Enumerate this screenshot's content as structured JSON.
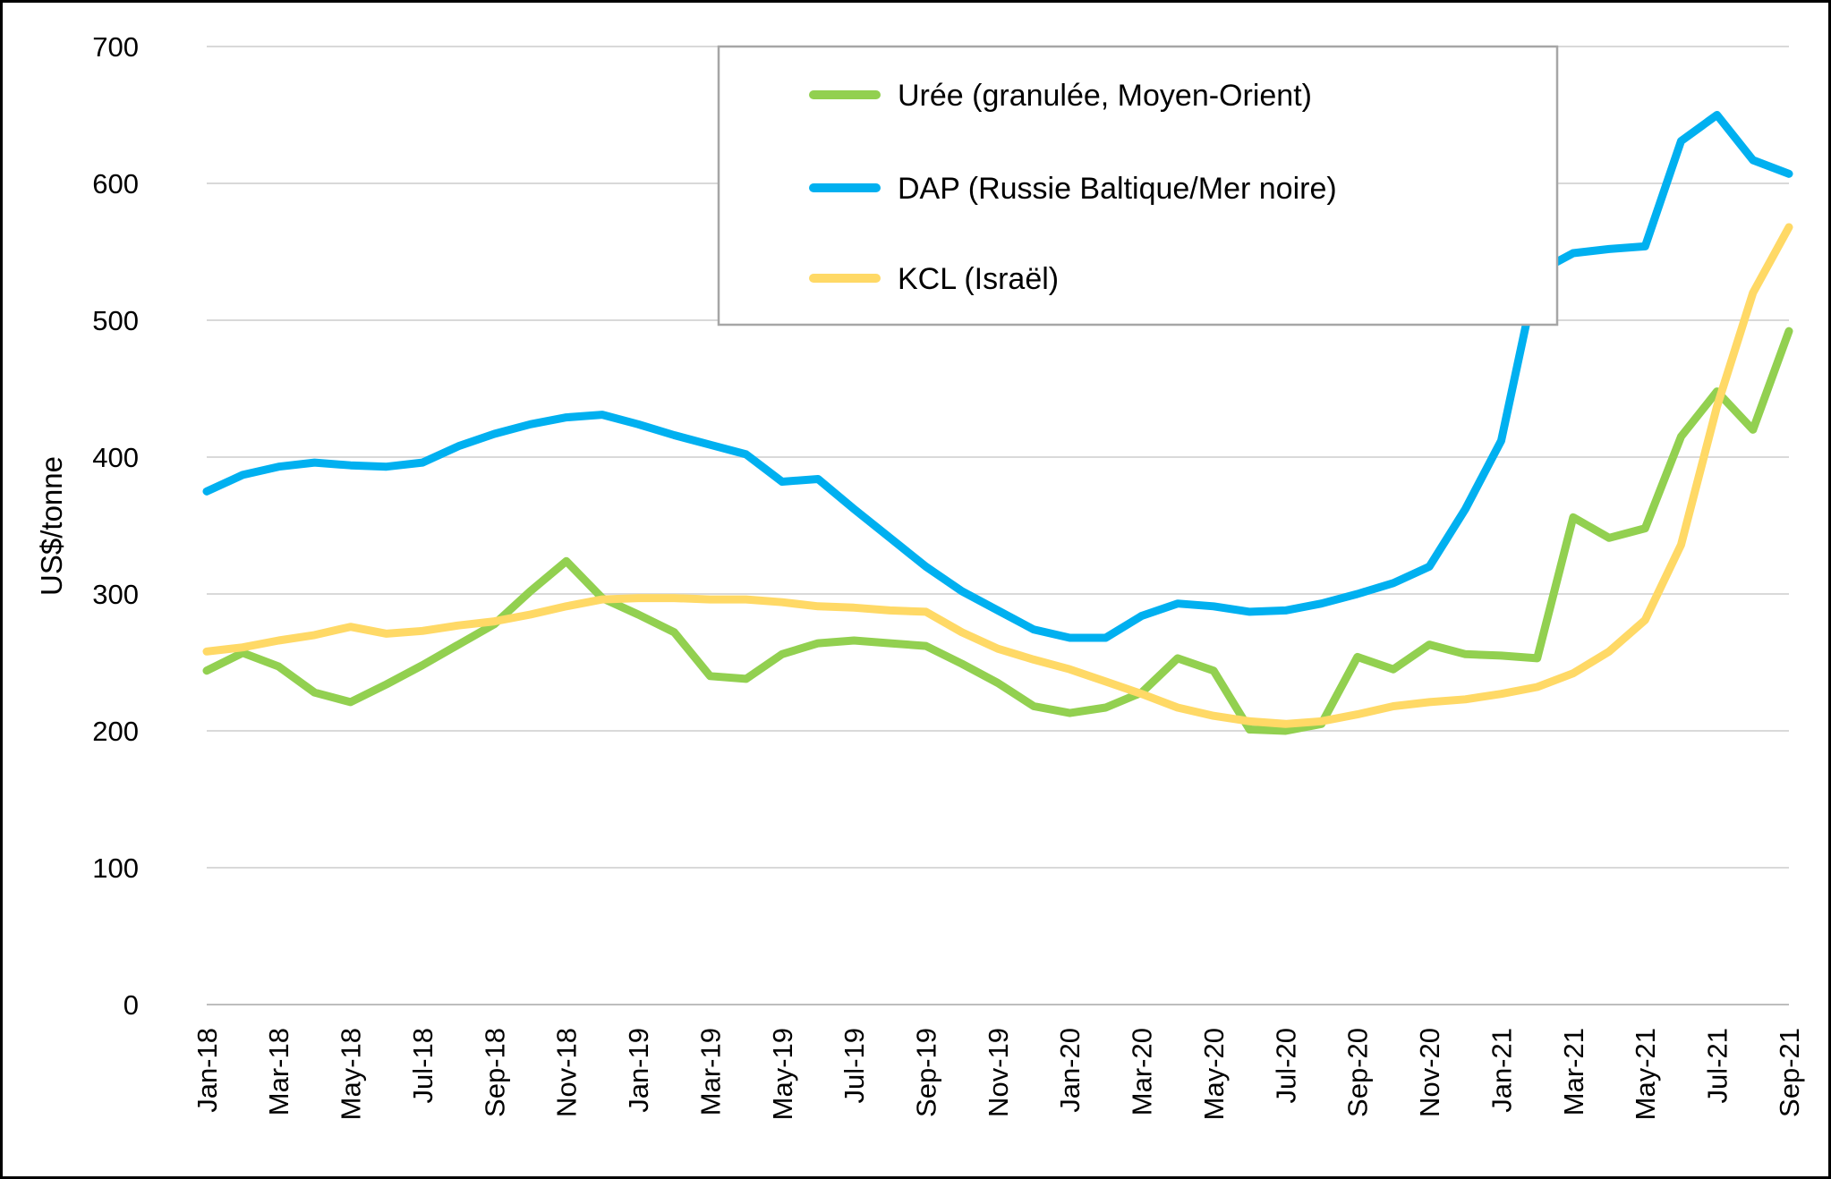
{
  "figure": {
    "background": "#ffffff",
    "border_color": "#000000"
  },
  "axis": {
    "y_title": "US$/tonne",
    "y_min": 0,
    "y_max": 700,
    "y_tick_step": 100,
    "y_tick_labels": [
      "0",
      "100",
      "200",
      "300",
      "400",
      "500",
      "600",
      "700"
    ],
    "x_tick_step": 2,
    "x_tick_labels": [
      "Jan-18",
      "Mar-18",
      "May-18",
      "Jul-18",
      "Sep-18",
      "Nov-18",
      "Jan-19",
      "Mar-19",
      "May-19",
      "Jul-19",
      "Sep-19",
      "Nov-19",
      "Jan-20",
      "Mar-20",
      "May-20",
      "Jul-20",
      "Sep-20",
      "Nov-20",
      "Jan-21",
      "Mar-21",
      "May-21",
      "Jul-21",
      "Sep-21"
    ],
    "gridline_color": "#d9d9d9",
    "axis_line_color": "#bdbdbd",
    "text_color": "#000000"
  },
  "legend": {
    "border_color": "#a6a6a6",
    "fill": "#ffffff",
    "items": [
      {
        "id": "uree",
        "label": "Urée (granulée, Moyen-Orient)",
        "color": "#92d050"
      },
      {
        "id": "dap",
        "label": "DAP (Russie Baltique/Mer noire)",
        "color": "#00b0f0"
      },
      {
        "id": "kcl",
        "label": "KCL (Israël)",
        "color": "#ffd966"
      }
    ]
  },
  "chart_data": {
    "type": "line",
    "title": "",
    "xlabel": "",
    "ylabel": "US$/tonne",
    "ylim": [
      0,
      700
    ],
    "grid": true,
    "legend_position": "top-right",
    "categories": [
      "Jan-18",
      "Feb-18",
      "Mar-18",
      "Apr-18",
      "May-18",
      "Jun-18",
      "Jul-18",
      "Aug-18",
      "Sep-18",
      "Oct-18",
      "Nov-18",
      "Dec-18",
      "Jan-19",
      "Feb-19",
      "Mar-19",
      "Apr-19",
      "May-19",
      "Jun-19",
      "Jul-19",
      "Aug-19",
      "Sep-19",
      "Oct-19",
      "Nov-19",
      "Dec-19",
      "Jan-20",
      "Feb-20",
      "Mar-20",
      "Apr-20",
      "May-20",
      "Jun-20",
      "Jul-20",
      "Aug-20",
      "Sep-20",
      "Oct-20",
      "Nov-20",
      "Dec-20",
      "Jan-21",
      "Feb-21",
      "Mar-21",
      "Apr-21",
      "May-21",
      "Jun-21",
      "Jul-21",
      "Aug-21",
      "Sep-21"
    ],
    "series": [
      {
        "name": "Urée (granulée, Moyen-Orient)",
        "color": "#92d050",
        "values": [
          244,
          257,
          247,
          228,
          221,
          234,
          248,
          263,
          278,
          302,
          324,
          297,
          285,
          272,
          240,
          238,
          256,
          264,
          266,
          264,
          262,
          249,
          235,
          218,
          213,
          217,
          228,
          253,
          244,
          201,
          200,
          205,
          254,
          245,
          263,
          256,
          255,
          253,
          356,
          341,
          348,
          415,
          448,
          420,
          492
        ]
      },
      {
        "name": "DAP (Russie Baltique/Mer noire)",
        "color": "#00b0f0",
        "values": [
          375,
          387,
          393,
          396,
          394,
          393,
          396,
          408,
          417,
          424,
          429,
          431,
          424,
          416,
          409,
          402,
          382,
          384,
          362,
          341,
          320,
          302,
          288,
          274,
          268,
          268,
          284,
          293,
          291,
          287,
          288,
          293,
          300,
          308,
          320,
          362,
          412,
          535,
          549,
          552,
          554,
          631,
          650,
          617,
          607
        ]
      },
      {
        "name": "KCL (Israël)",
        "color": "#ffd966",
        "values": [
          258,
          261,
          266,
          270,
          276,
          271,
          273,
          277,
          280,
          285,
          291,
          296,
          297,
          297,
          296,
          296,
          294,
          291,
          290,
          288,
          287,
          272,
          260,
          252,
          245,
          236,
          227,
          217,
          211,
          207,
          205,
          207,
          212,
          218,
          221,
          223,
          227,
          232,
          242,
          258,
          281,
          336,
          437,
          520,
          568
        ]
      }
    ]
  }
}
